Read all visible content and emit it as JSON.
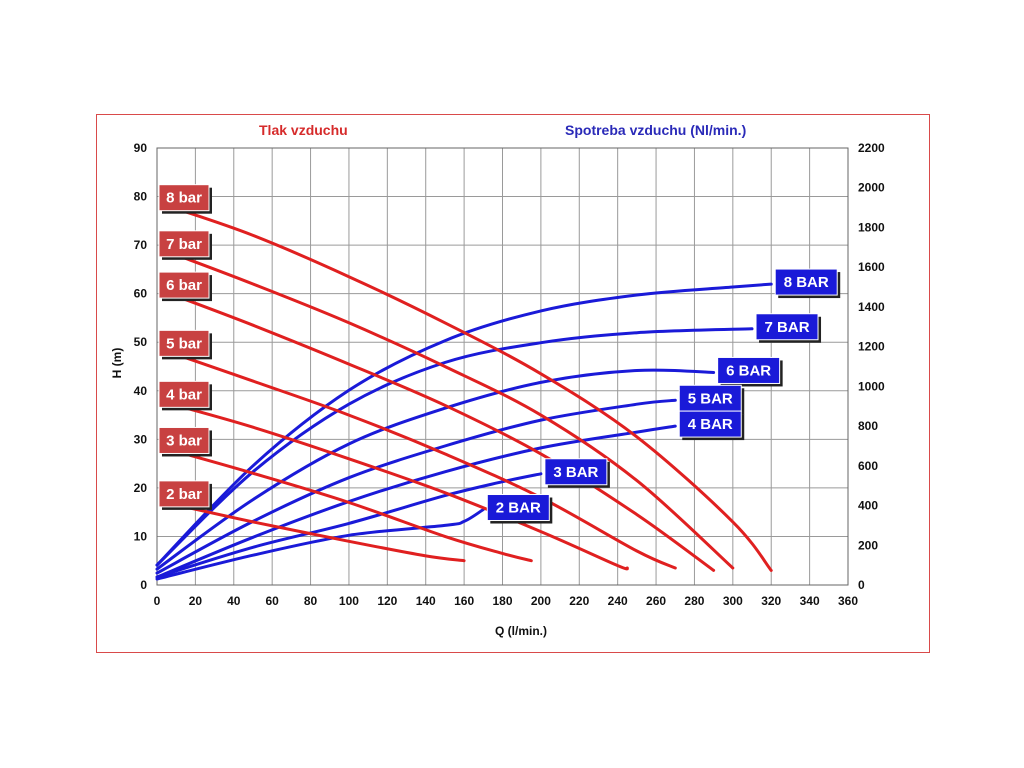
{
  "chart_data": {
    "type": "line",
    "title_left": "Tlak vzduchu",
    "title_right": "Spotreba vzduchu (Nl/min.)",
    "xlabel": "Q (l/min.)",
    "ylabel": "H (m)",
    "xlim": [
      0,
      360
    ],
    "ylim_left": [
      0,
      90
    ],
    "ylim_right": [
      0,
      2200
    ],
    "xticks": [
      0,
      20,
      40,
      60,
      80,
      100,
      120,
      140,
      160,
      180,
      200,
      220,
      240,
      260,
      280,
      300,
      320,
      340,
      360
    ],
    "yticks_left": [
      0,
      10,
      20,
      30,
      40,
      50,
      60,
      70,
      80,
      90
    ],
    "yticks_right": [
      0,
      200,
      400,
      600,
      800,
      1000,
      1200,
      1400,
      1600,
      1800,
      2000,
      2200
    ],
    "grid": true,
    "colors": {
      "head": "#e02020",
      "air": "#1a1ad8",
      "frame": "#d94a4a"
    },
    "head_curves": [
      {
        "name": "8 bar",
        "x": [
          10,
          50,
          100,
          150,
          200,
          250,
          300,
          320
        ],
        "y": [
          77.5,
          72,
          63.5,
          54,
          43.5,
          30.5,
          13,
          3
        ]
      },
      {
        "name": "7 bar",
        "x": [
          10,
          50,
          100,
          150,
          200,
          250,
          300
        ],
        "y": [
          68,
          62,
          54,
          45,
          35,
          21.5,
          3.5
        ]
      },
      {
        "name": "6 bar",
        "x": [
          10,
          50,
          100,
          150,
          200,
          250,
          290
        ],
        "y": [
          59.5,
          53.5,
          45.5,
          37,
          27,
          14.5,
          3
        ]
      },
      {
        "name": "5 bar",
        "x": [
          10,
          50,
          100,
          150,
          200,
          250,
          270
        ],
        "y": [
          47.5,
          42,
          35,
          27,
          18,
          7,
          3.5
        ]
      },
      {
        "name": "4 bar",
        "x": [
          10,
          50,
          100,
          150,
          200,
          240,
          245
        ],
        "y": [
          37,
          32.5,
          26,
          19,
          11,
          4,
          3.5
        ]
      },
      {
        "name": "3 bar",
        "x": [
          10,
          50,
          100,
          150,
          180,
          195
        ],
        "y": [
          27.5,
          23,
          17,
          10,
          6.5,
          5
        ]
      },
      {
        "name": "2 bar",
        "x": [
          10,
          50,
          100,
          140,
          160
        ],
        "y": [
          16.5,
          13,
          9,
          6,
          5
        ]
      }
    ],
    "air_curves": [
      {
        "name": "8 BAR",
        "x": [
          0,
          50,
          100,
          150,
          200,
          250,
          300,
          320
        ],
        "y": [
          100,
          600,
          980,
          1230,
          1380,
          1460,
          1500,
          1515
        ]
      },
      {
        "name": "7 BAR",
        "x": [
          0,
          50,
          100,
          150,
          200,
          250,
          310
        ],
        "y": [
          100,
          570,
          910,
          1120,
          1220,
          1270,
          1290
        ]
      },
      {
        "name": "6 BAR",
        "x": [
          0,
          50,
          100,
          150,
          200,
          250,
          290
        ],
        "y": [
          80,
          430,
          710,
          890,
          1020,
          1080,
          1070
        ]
      },
      {
        "name": "5 BAR",
        "x": [
          0,
          50,
          100,
          150,
          200,
          250,
          270
        ],
        "y": [
          60,
          320,
          540,
          700,
          830,
          910,
          930
        ]
      },
      {
        "name": "4 BAR",
        "x": [
          0,
          50,
          100,
          150,
          200,
          250,
          270
        ],
        "y": [
          40,
          240,
          420,
          570,
          690,
          770,
          800
        ]
      },
      {
        "name": "3 BAR",
        "x": [
          0,
          50,
          100,
          150,
          180,
          200
        ],
        "y": [
          40,
          190,
          310,
          450,
          520,
          560
        ]
      },
      {
        "name": "2 BAR",
        "x": [
          0,
          50,
          100,
          150,
          160,
          170
        ],
        "y": [
          30,
          150,
          250,
          300,
          320,
          380
        ]
      }
    ]
  }
}
